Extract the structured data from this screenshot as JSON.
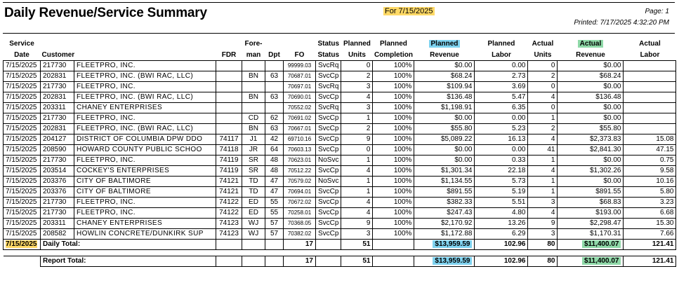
{
  "header": {
    "title": "Daily Revenue/Service Summary",
    "for_date": "For 7/15/2025",
    "page": "Page: 1",
    "printed": "Printed: 7/17/2025 4:32:20 PM"
  },
  "columns": {
    "service_date": [
      "Service",
      "Date"
    ],
    "customer": [
      "",
      "Customer"
    ],
    "fdr": [
      "",
      "FDR"
    ],
    "foreman": [
      "Fore-",
      "man"
    ],
    "dpt": [
      "",
      "Dpt"
    ],
    "fo": [
      "",
      "FO"
    ],
    "status": [
      "Status",
      "Status"
    ],
    "planned_units": [
      "Planned",
      "Units"
    ],
    "planned_completion": [
      "Planned",
      "Completion"
    ],
    "planned_revenue": [
      "Planned",
      "Revenue"
    ],
    "planned_labor": [
      "Planned",
      "Labor"
    ],
    "actual_units": [
      "Actual",
      "Units"
    ],
    "actual_revenue": [
      "Actual",
      "Revenue"
    ],
    "actual_labor": [
      "Actual",
      "Labor"
    ]
  },
  "rows": [
    {
      "date": "7/15/2025",
      "cust_no": "217730",
      "customer": "FLEETPRO, INC.",
      "fdr": "",
      "foreman": "",
      "dpt": "",
      "fo": "99999.03",
      "status": "SvcRq",
      "p_units": "0",
      "p_comp": "100%",
      "p_rev": "$0.00",
      "p_labor": "0.00",
      "a_units": "0",
      "a_rev": "$0.00",
      "a_labor": ""
    },
    {
      "date": "7/15/2025",
      "cust_no": "202831",
      "customer": "FLEETPRO, INC. (BWI RAC, LLC)",
      "fdr": "",
      "foreman": "BN",
      "dpt": "63",
      "fo": "70687.01",
      "status": "SvcCp",
      "p_units": "2",
      "p_comp": "100%",
      "p_rev": "$68.24",
      "p_labor": "2.73",
      "a_units": "2",
      "a_rev": "$68.24",
      "a_labor": ""
    },
    {
      "date": "7/15/2025",
      "cust_no": "217730",
      "customer": "FLEETPRO, INC.",
      "fdr": "",
      "foreman": "",
      "dpt": "",
      "fo": "70697.01",
      "status": "SvcRq",
      "p_units": "3",
      "p_comp": "100%",
      "p_rev": "$109.94",
      "p_labor": "3.69",
      "a_units": "0",
      "a_rev": "$0.00",
      "a_labor": ""
    },
    {
      "date": "7/15/2025",
      "cust_no": "202831",
      "customer": "FLEETPRO, INC. (BWI RAC, LLC)",
      "fdr": "",
      "foreman": "BN",
      "dpt": "63",
      "fo": "70690.01",
      "status": "SvcCp",
      "p_units": "4",
      "p_comp": "100%",
      "p_rev": "$136.48",
      "p_labor": "5.47",
      "a_units": "4",
      "a_rev": "$136.48",
      "a_labor": ""
    },
    {
      "date": "7/15/2025",
      "cust_no": "203311",
      "customer": "CHANEY ENTERPRISES",
      "fdr": "",
      "foreman": "",
      "dpt": "",
      "fo": "70552.02",
      "status": "SvcRq",
      "p_units": "3",
      "p_comp": "100%",
      "p_rev": "$1,198.91",
      "p_labor": "6.35",
      "a_units": "0",
      "a_rev": "$0.00",
      "a_labor": ""
    },
    {
      "date": "7/15/2025",
      "cust_no": "217730",
      "customer": "FLEETPRO, INC.",
      "fdr": "",
      "foreman": "CD",
      "dpt": "62",
      "fo": "70691.02",
      "status": "SvcCp",
      "p_units": "1",
      "p_comp": "100%",
      "p_rev": "$0.00",
      "p_labor": "0.00",
      "a_units": "1",
      "a_rev": "$0.00",
      "a_labor": ""
    },
    {
      "date": "7/15/2025",
      "cust_no": "202831",
      "customer": "FLEETPRO, INC. (BWI RAC, LLC)",
      "fdr": "",
      "foreman": "BN",
      "dpt": "63",
      "fo": "70667.01",
      "status": "SvcCp",
      "p_units": "2",
      "p_comp": "100%",
      "p_rev": "$55.80",
      "p_labor": "5.23",
      "a_units": "2",
      "a_rev": "$55.80",
      "a_labor": ""
    },
    {
      "date": "7/15/2025",
      "cust_no": "204127",
      "customer": "DISTRICT OF COLUMBIA DPW DDO",
      "fdr": "74117",
      "foreman": "J1",
      "dpt": "42",
      "fo": "69710.16",
      "status": "SvcCp",
      "p_units": "9",
      "p_comp": "100%",
      "p_rev": "$5,089.22",
      "p_labor": "16.13",
      "a_units": "4",
      "a_rev": "$2,373.83",
      "a_labor": "15.08"
    },
    {
      "date": "7/15/2025",
      "cust_no": "208590",
      "customer": "HOWARD COUNTY PUBLIC SCHOO",
      "fdr": "74118",
      "foreman": "JR",
      "dpt": "64",
      "fo": "70603.13",
      "status": "SvcCp",
      "p_units": "0",
      "p_comp": "100%",
      "p_rev": "$0.00",
      "p_labor": "0.00",
      "a_units": "41",
      "a_rev": "$2,841.30",
      "a_labor": "47.15"
    },
    {
      "date": "7/15/2025",
      "cust_no": "217730",
      "customer": "FLEETPRO, INC.",
      "fdr": "74119",
      "foreman": "SR",
      "dpt": "48",
      "fo": "70623.01",
      "status": "NoSvc",
      "p_units": "1",
      "p_comp": "100%",
      "p_rev": "$0.00",
      "p_labor": "0.33",
      "a_units": "1",
      "a_rev": "$0.00",
      "a_labor": "0.75"
    },
    {
      "date": "7/15/2025",
      "cust_no": "203514",
      "customer": "COCKEY'S ENTERPRISES",
      "fdr": "74119",
      "foreman": "SR",
      "dpt": "48",
      "fo": "70512.22",
      "status": "SvcCp",
      "p_units": "4",
      "p_comp": "100%",
      "p_rev": "$1,301.34",
      "p_labor": "22.18",
      "a_units": "4",
      "a_rev": "$1,302.26",
      "a_labor": "9.58"
    },
    {
      "date": "7/15/2025",
      "cust_no": "203376",
      "customer": "CITY OF BALTIMORE",
      "fdr": "74121",
      "foreman": "TD",
      "dpt": "47",
      "fo": "70579.02",
      "status": "NoSvc",
      "p_units": "1",
      "p_comp": "100%",
      "p_rev": "$1,134.55",
      "p_labor": "5.73",
      "a_units": "1",
      "a_rev": "$0.00",
      "a_labor": "10.16"
    },
    {
      "date": "7/15/2025",
      "cust_no": "203376",
      "customer": "CITY OF BALTIMORE",
      "fdr": "74121",
      "foreman": "TD",
      "dpt": "47",
      "fo": "70694.01",
      "status": "SvcCp",
      "p_units": "1",
      "p_comp": "100%",
      "p_rev": "$891.55",
      "p_labor": "5.19",
      "a_units": "1",
      "a_rev": "$891.55",
      "a_labor": "5.80"
    },
    {
      "date": "7/15/2025",
      "cust_no": "217730",
      "customer": "FLEETPRO, INC.",
      "fdr": "74122",
      "foreman": "ED",
      "dpt": "55",
      "fo": "70672.02",
      "status": "SvcCp",
      "p_units": "4",
      "p_comp": "100%",
      "p_rev": "$382.33",
      "p_labor": "5.51",
      "a_units": "3",
      "a_rev": "$68.83",
      "a_labor": "3.23"
    },
    {
      "date": "7/15/2025",
      "cust_no": "217730",
      "customer": "FLEETPRO, INC.",
      "fdr": "74122",
      "foreman": "ED",
      "dpt": "55",
      "fo": "70258.01",
      "status": "SvcCp",
      "p_units": "4",
      "p_comp": "100%",
      "p_rev": "$247.43",
      "p_labor": "4.80",
      "a_units": "4",
      "a_rev": "$193.00",
      "a_labor": "6.68"
    },
    {
      "date": "7/15/2025",
      "cust_no": "203311",
      "customer": "CHANEY ENTERPRISES",
      "fdr": "74123",
      "foreman": "WJ",
      "dpt": "57",
      "fo": "70368.05",
      "status": "SvcCp",
      "p_units": "9",
      "p_comp": "100%",
      "p_rev": "$2,170.92",
      "p_labor": "13.26",
      "a_units": "9",
      "a_rev": "$2,298.47",
      "a_labor": "15.30"
    },
    {
      "date": "7/15/2025",
      "cust_no": "208582",
      "customer": "HOWLIN CONCRETE/DUNKIRK SUP",
      "fdr": "74123",
      "foreman": "WJ",
      "dpt": "57",
      "fo": "70382.02",
      "status": "SvcCp",
      "p_units": "3",
      "p_comp": "100%",
      "p_rev": "$1,172.88",
      "p_labor": "6.29",
      "a_units": "3",
      "a_rev": "$1,170.31",
      "a_labor": "7.66"
    }
  ],
  "daily_total": {
    "date": "7/15/2025",
    "label": "Daily Total:",
    "fo_count": "17",
    "p_units": "51",
    "p_rev": "$13,959.59",
    "p_labor": "102.96",
    "a_units": "80",
    "a_rev": "$11,400.07",
    "a_labor": "121.41"
  },
  "report_total": {
    "label": "Report Total:",
    "fo_count": "17",
    "p_units": "51",
    "p_rev": "$13,959.59",
    "p_labor": "102.96",
    "a_units": "80",
    "a_rev": "$11,400.07",
    "a_labor": "121.41"
  },
  "colors": {
    "planned_highlight": "#7fd3f0",
    "actual_highlight": "#8fd9a8",
    "date_highlight": "#ffd966"
  }
}
